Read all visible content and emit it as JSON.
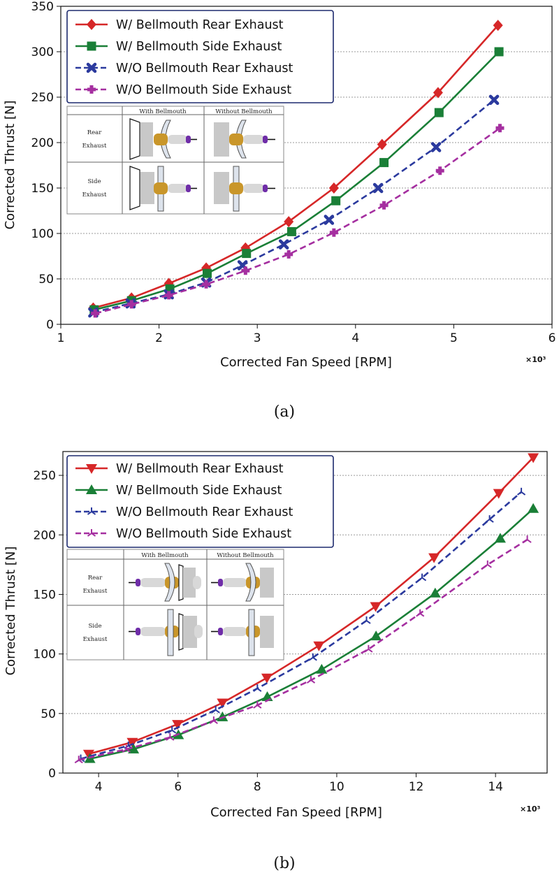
{
  "chart_data": [
    {
      "type": "line",
      "panel": "a",
      "caption": "(a)",
      "xlabel": "Corrected Fan Speed [RPM]",
      "ylabel": "Corrected Thrust [N]",
      "xlim": [
        1,
        6
      ],
      "ylim": [
        0,
        350
      ],
      "xticks": [
        1,
        2,
        3,
        4,
        5,
        6
      ],
      "yticks": [
        0,
        50,
        100,
        150,
        200,
        250,
        300,
        350
      ],
      "x_multiplier": "×10³",
      "grid": "horizontal",
      "legend_position": "top-left",
      "series": [
        {
          "name": "W/ Bellmouth Rear Exhaust",
          "color": "#d62728",
          "marker": "diamond",
          "dash": "solid",
          "x": [
            1.33,
            1.72,
            2.1,
            2.48,
            2.88,
            3.32,
            3.78,
            4.27,
            4.84,
            5.45
          ],
          "y": [
            18,
            29,
            45,
            62,
            84,
            113,
            150,
            198,
            255,
            329
          ]
        },
        {
          "name": "W/ Bellmouth Side Exhaust",
          "color": "#1a7f37",
          "marker": "square",
          "dash": "solid",
          "x": [
            1.34,
            1.72,
            2.11,
            2.49,
            2.89,
            3.35,
            3.8,
            4.29,
            4.85,
            5.46
          ],
          "y": [
            16,
            26,
            39,
            56,
            78,
            102,
            136,
            178,
            233,
            300
          ]
        },
        {
          "name": "W/O Bellmouth Rear Exhaust",
          "color": "#2b3a9e",
          "marker": "x",
          "dash": "dashed",
          "x": [
            1.33,
            1.71,
            2.1,
            2.48,
            2.85,
            3.27,
            3.73,
            4.23,
            4.82,
            5.41
          ],
          "y": [
            13,
            23,
            33,
            46,
            65,
            88,
            115,
            150,
            195,
            247
          ]
        },
        {
          "name": "W/O Bellmouth Side Exhaust",
          "color": "#a52fa0",
          "marker": "plus",
          "dash": "dashed",
          "x": [
            1.35,
            1.72,
            2.1,
            2.48,
            2.88,
            3.32,
            3.78,
            4.29,
            4.86,
            5.47
          ],
          "y": [
            12,
            22,
            32,
            44,
            59,
            77,
            101,
            131,
            169,
            216
          ]
        }
      ]
    },
    {
      "type": "line",
      "panel": "b",
      "caption": "(b)",
      "xlabel": "Corrected Fan Speed [RPM]",
      "ylabel": "Corrected Thrust [N]",
      "xlim": [
        3.1,
        15.3
      ],
      "ylim": [
        0,
        270
      ],
      "xticks": [
        4,
        6,
        8,
        10,
        12,
        14
      ],
      "yticks": [
        0,
        50,
        100,
        150,
        200,
        250
      ],
      "x_multiplier": "×10³",
      "grid": "horizontal",
      "legend_position": "top-left",
      "series": [
        {
          "name": "W/ Bellmouth Rear Exhaust",
          "color": "#d62728",
          "marker": "triangle-down",
          "dash": "solid",
          "x": [
            3.75,
            4.85,
            5.99,
            7.12,
            8.24,
            9.55,
            10.98,
            12.45,
            14.08,
            14.95
          ],
          "y": [
            16,
            26,
            41,
            59,
            80,
            107,
            140,
            181,
            235,
            265
          ]
        },
        {
          "name": "W/ Bellmouth Side Exhaust",
          "color": "#1a7f37",
          "marker": "triangle-up",
          "dash": "solid",
          "x": [
            3.78,
            4.88,
            6.01,
            7.12,
            8.25,
            9.62,
            10.99,
            12.48,
            14.12,
            14.95
          ],
          "y": [
            12,
            20,
            32,
            47,
            64,
            87,
            115,
            151,
            197,
            222
          ]
        },
        {
          "name": "W/O Bellmouth Rear Exhaust",
          "color": "#2b3a9e",
          "marker": "tri",
          "dash": "dashed",
          "x": [
            3.55,
            4.75,
            5.85,
            6.95,
            8.0,
            9.4,
            10.75,
            12.15,
            13.85,
            14.65
          ],
          "y": [
            12,
            23,
            36,
            53,
            71,
            97,
            128,
            164,
            213,
            236
          ]
        },
        {
          "name": "W/O Bellmouth Side Exhaust",
          "color": "#a52fa0",
          "marker": "tri",
          "dash": "dashed",
          "x": [
            3.5,
            4.7,
            5.8,
            6.9,
            8.0,
            9.35,
            10.8,
            12.1,
            13.8,
            14.8
          ],
          "y": [
            11,
            20,
            30,
            44,
            57,
            78,
            104,
            134,
            175,
            196
          ]
        }
      ]
    }
  ],
  "insets": [
    {
      "col_headers": [
        "With  Bellmouth",
        "Without  Bellmouth"
      ],
      "row_headers": [
        [
          "Rear",
          "Exhaust"
        ],
        [
          "Side",
          "Exhaust"
        ]
      ]
    },
    {
      "col_headers": [
        "With  Bellmouth",
        "Without  Bellmouth"
      ],
      "row_headers": [
        [
          "Rear",
          "Exhaust"
        ],
        [
          "Side",
          "Exhaust"
        ]
      ]
    }
  ]
}
